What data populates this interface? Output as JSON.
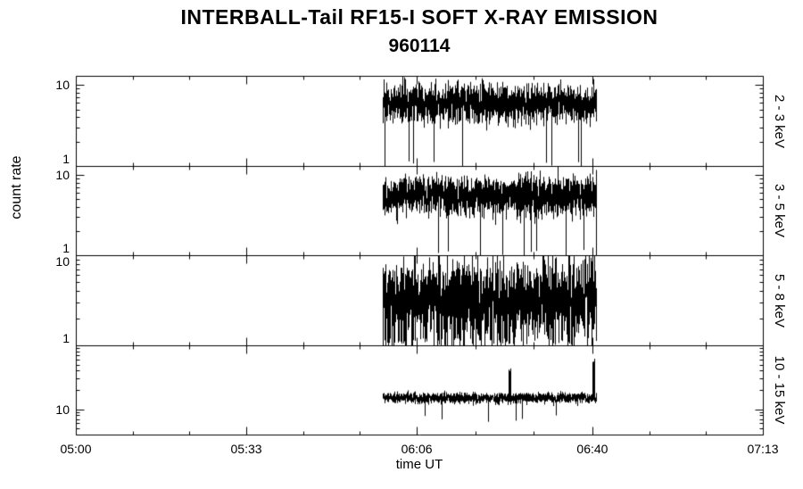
{
  "title": "INTERBALL-Tail RF15-I SOFT X-RAY EMISSION",
  "subtitle": "960114",
  "axes": {
    "xlabel": "time UT",
    "ylabel": "count rate"
  },
  "colors": {
    "fg": "#000000",
    "bg": "#ffffff"
  },
  "chart_data": {
    "type": "line",
    "title": "INTERBALL-Tail RF15-I SOFT X-RAY EMISSION",
    "subtitle": "960114",
    "xlabel": "time UT",
    "ylabel": "count rate",
    "x_range": [
      5.0,
      7.2167
    ],
    "x_ticks": [
      {
        "t": 5.0,
        "label": "05:00"
      },
      {
        "t": 5.55,
        "label": "05:33"
      },
      {
        "t": 6.1,
        "label": "06:06"
      },
      {
        "t": 6.6667,
        "label": "06:40"
      },
      {
        "t": 7.2167,
        "label": "07:13"
      }
    ],
    "x_minor_divisions": 3,
    "data_window": {
      "start": 5.99,
      "end": 6.68,
      "start_label": "~05:59 UT",
      "end_label": "~06:41 UT"
    },
    "seed": 960114,
    "panels": [
      {
        "band": "2 - 3 keV",
        "scale": "log",
        "y_range": [
          1,
          13
        ],
        "y_tick_labels": [
          {
            "v": 10,
            "label": "10"
          },
          {
            "v": 1,
            "label": "1"
          }
        ],
        "mean": 6.0,
        "sigma": 0.26,
        "dip_prob": 0.035,
        "dip_value": 1,
        "spikes": []
      },
      {
        "band": "3 - 5 keV",
        "scale": "log",
        "y_range": [
          1,
          13
        ],
        "y_tick_labels": [
          {
            "v": 10,
            "label": "10"
          },
          {
            "v": 1,
            "label": "1"
          }
        ],
        "mean": 5.5,
        "sigma": 0.28,
        "dip_prob": 0.05,
        "dip_value": 1,
        "spikes": []
      },
      {
        "band": "5 - 8 keV",
        "scale": "log",
        "y_range": [
          1,
          10
        ],
        "y_tick_labels": [
          {
            "v": 10,
            "label": "10"
          },
          {
            "v": 1,
            "label": "1"
          }
        ],
        "mean": 3.2,
        "sigma": 0.48,
        "dip_prob": 0.3,
        "dip_value": 1,
        "spikes": []
      },
      {
        "band": "10 - 15 keV",
        "scale": "log",
        "y_range": [
          4,
          100
        ],
        "y_tick_labels": [
          {
            "v": 10,
            "label": "10"
          }
        ],
        "mean": 15.0,
        "sigma": 0.1,
        "dip_prob": 0.04,
        "dip_value": 7,
        "spikes": [
          {
            "t": 6.4,
            "v": 45
          },
          {
            "t": 6.67,
            "v": 62
          }
        ]
      }
    ]
  }
}
